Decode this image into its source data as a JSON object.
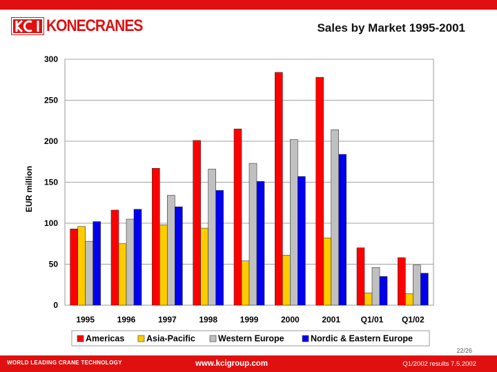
{
  "brand": {
    "name": "KONECRANES",
    "logo_letters": "KCI",
    "color": "#e01010"
  },
  "slide": {
    "title": "Sales by Market 1995-2001",
    "page": "22/26"
  },
  "footer": {
    "tagline": "WORLD LEADING CRANE TECHNOLOGY",
    "url": "www.kcigroup.com",
    "doc": "Q1/2002 results 7.5.2002"
  },
  "chart_data": {
    "type": "bar",
    "title": "Sales by Market 1995-2001",
    "ylabel": "EUR million",
    "xlabel": "",
    "ylim": [
      0,
      300
    ],
    "yticks": [
      0,
      50,
      100,
      150,
      200,
      250,
      300
    ],
    "grid": true,
    "legend_position": "bottom",
    "categories": [
      "1995",
      "1996",
      "1997",
      "1998",
      "1999",
      "2000",
      "2001",
      "Q1/01",
      "Q1/02"
    ],
    "series": [
      {
        "name": "Americas",
        "color": "#ff0000",
        "values": [
          93,
          116,
          167,
          201,
          215,
          284,
          278,
          70,
          58
        ]
      },
      {
        "name": "Asia-Pacific",
        "color": "#ffcc00",
        "values": [
          96,
          75,
          98,
          94,
          54,
          61,
          82,
          15,
          14
        ]
      },
      {
        "name": "Western Europe",
        "color": "#c0c0c0",
        "values": [
          78,
          105,
          134,
          166,
          173,
          202,
          214,
          46,
          49
        ]
      },
      {
        "name": "Nordic & Eastern Europe",
        "color": "#0000ee",
        "values": [
          102,
          117,
          120,
          140,
          151,
          157,
          184,
          35,
          39
        ]
      }
    ]
  }
}
